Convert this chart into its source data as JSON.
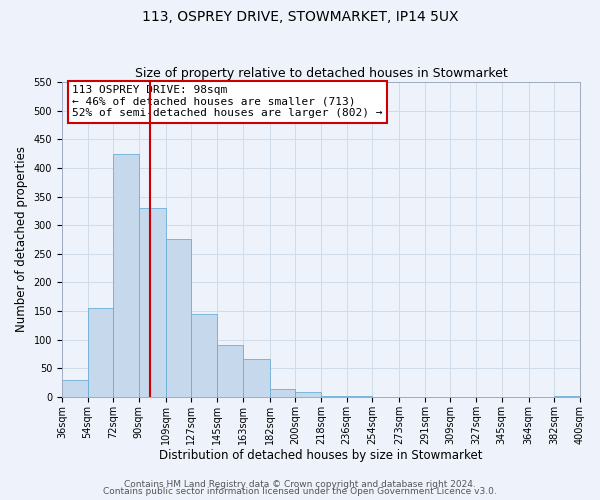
{
  "title": "113, OSPREY DRIVE, STOWMARKET, IP14 5UX",
  "subtitle": "Size of property relative to detached houses in Stowmarket",
  "xlabel": "Distribution of detached houses by size in Stowmarket",
  "ylabel": "Number of detached properties",
  "bar_left_edges": [
    36,
    54,
    72,
    90,
    109,
    127,
    145,
    163,
    182,
    200,
    218,
    236,
    254,
    273,
    291,
    309,
    327,
    345,
    364,
    382
  ],
  "bar_heights": [
    30,
    155,
    425,
    330,
    275,
    145,
    90,
    67,
    13,
    8,
    2,
    1,
    0,
    0,
    0,
    0,
    0,
    0,
    0,
    2
  ],
  "bar_widths": [
    18,
    18,
    18,
    19,
    18,
    18,
    18,
    19,
    18,
    18,
    18,
    18,
    19,
    18,
    18,
    18,
    18,
    19,
    18,
    18
  ],
  "bar_color": "#c5d8ec",
  "bar_edgecolor": "#6aaed6",
  "vline_x": 98,
  "vline_color": "#cc0000",
  "ylim": [
    0,
    550
  ],
  "yticks": [
    0,
    50,
    100,
    150,
    200,
    250,
    300,
    350,
    400,
    450,
    500,
    550
  ],
  "xtick_labels": [
    "36sqm",
    "54sqm",
    "72sqm",
    "90sqm",
    "109sqm",
    "127sqm",
    "145sqm",
    "163sqm",
    "182sqm",
    "200sqm",
    "218sqm",
    "236sqm",
    "254sqm",
    "273sqm",
    "291sqm",
    "309sqm",
    "327sqm",
    "345sqm",
    "364sqm",
    "382sqm",
    "400sqm"
  ],
  "xtick_positions": [
    36,
    54,
    72,
    90,
    109,
    127,
    145,
    163,
    182,
    200,
    218,
    236,
    254,
    273,
    291,
    309,
    327,
    345,
    364,
    382,
    400
  ],
  "annotation_text": "113 OSPREY DRIVE: 98sqm\n← 46% of detached houses are smaller (713)\n52% of semi-detached houses are larger (802) →",
  "footer_line1": "Contains HM Land Registry data © Crown copyright and database right 2024.",
  "footer_line2": "Contains public sector information licensed under the Open Government Licence v3.0.",
  "grid_color": "#d0dcea",
  "background_color": "#eef2fa",
  "title_fontsize": 10,
  "subtitle_fontsize": 9,
  "axis_label_fontsize": 8.5,
  "tick_fontsize": 7,
  "annotation_fontsize": 8,
  "footer_fontsize": 6.5
}
